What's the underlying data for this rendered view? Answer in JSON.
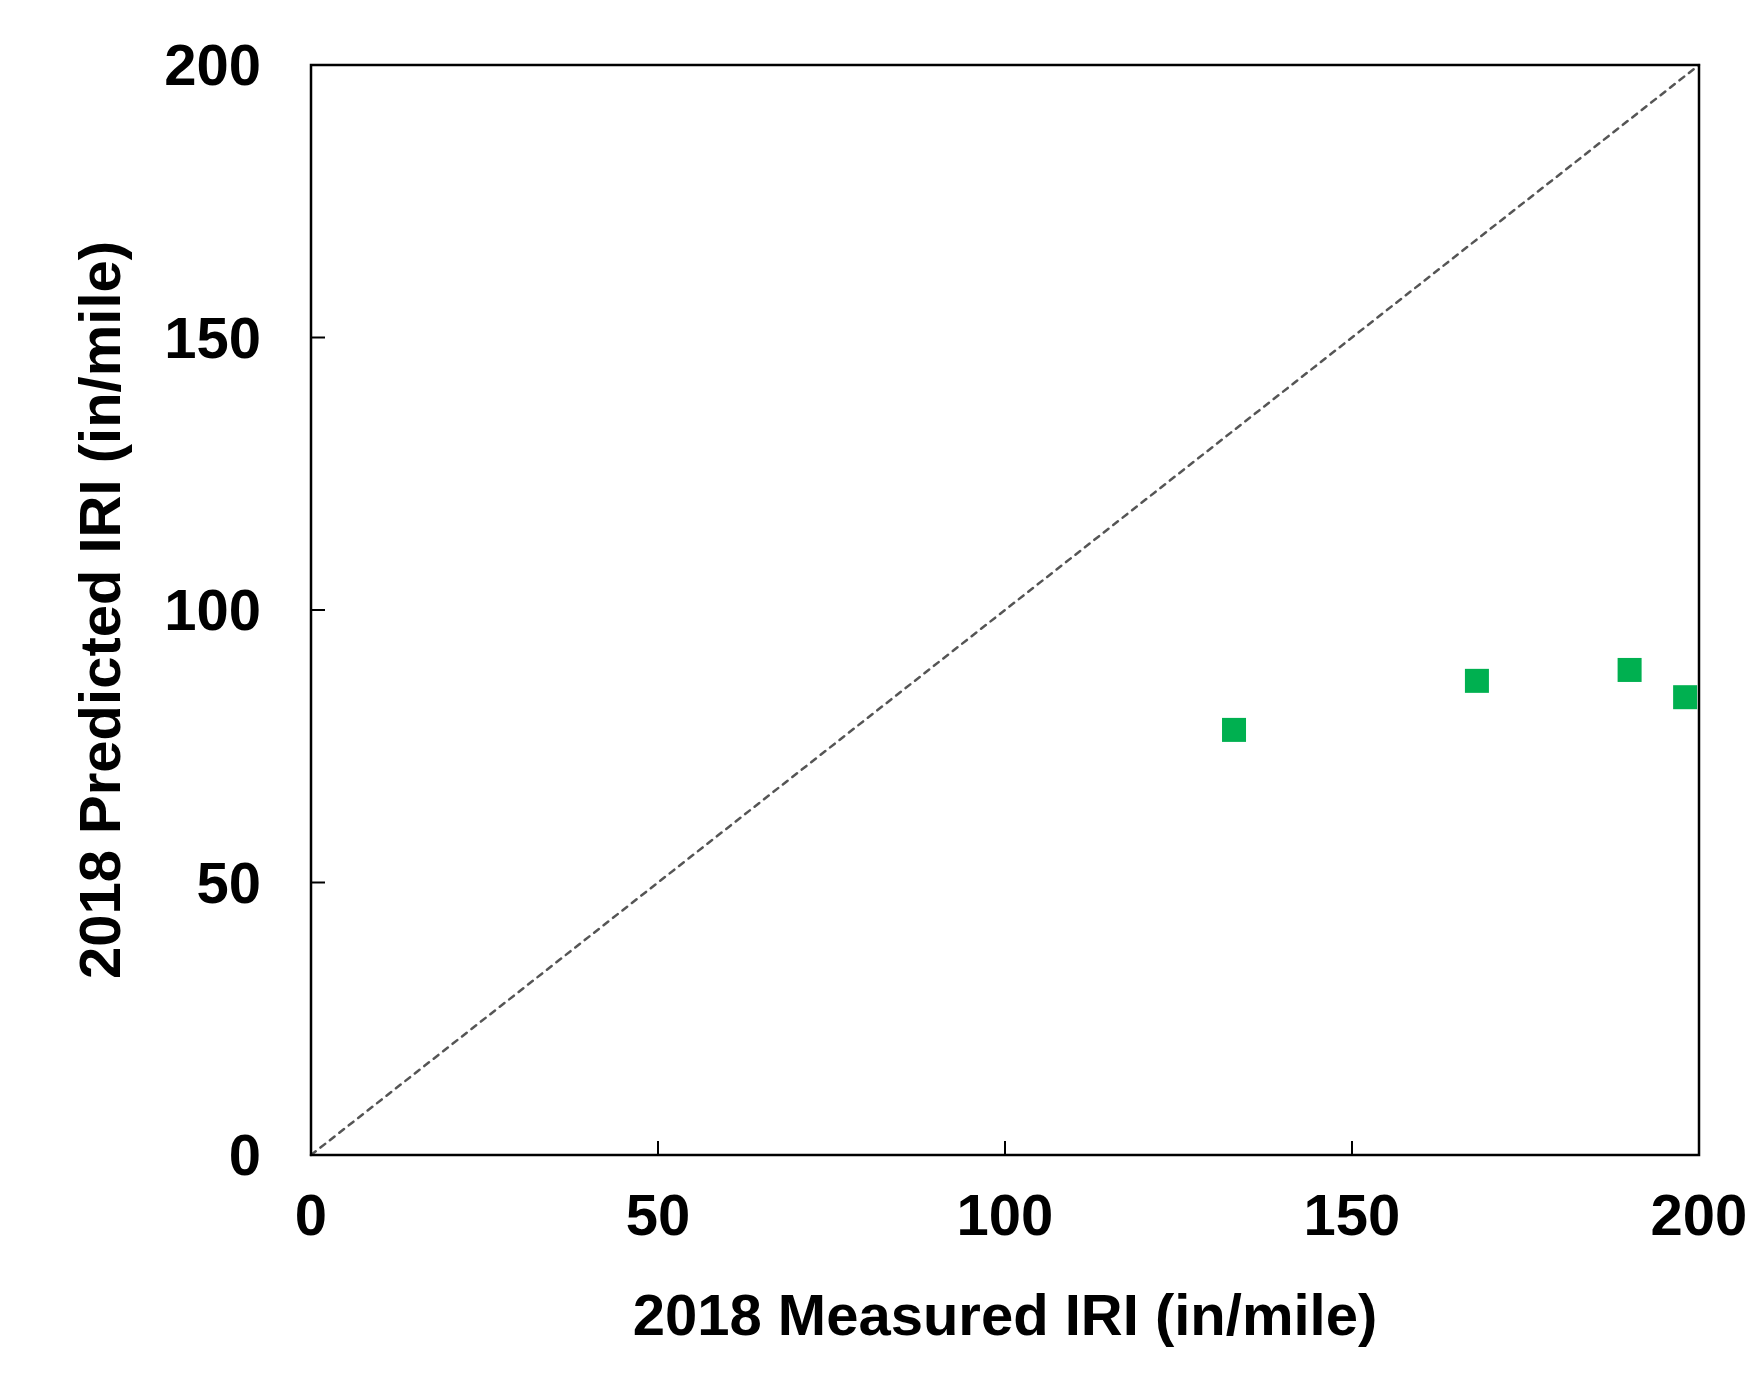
{
  "chart_data": {
    "type": "scatter",
    "xlabel": "2018 Measured IRI (in/mile)",
    "ylabel": "2018 Predicted IRI (in/mile)",
    "xlim": [
      0,
      200
    ],
    "ylim": [
      0,
      200
    ],
    "xticks": [
      0,
      50,
      100,
      150,
      200
    ],
    "yticks": [
      0,
      50,
      100,
      150,
      200
    ],
    "grid": false,
    "series": [
      {
        "color": "#00b050",
        "marker": "square",
        "x": [
          133,
          168,
          190,
          198
        ],
        "values": [
          78,
          87,
          89,
          84
        ]
      },
      {
        "type": "line",
        "color": "#555555",
        "line_style": "dashed",
        "marker": "none",
        "x": [
          0,
          200
        ],
        "values": [
          0,
          200
        ]
      }
    ]
  }
}
